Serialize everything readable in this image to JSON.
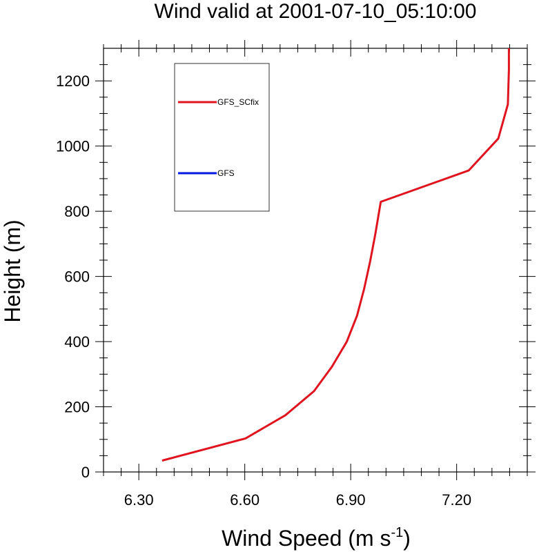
{
  "chart_data": {
    "type": "line",
    "title": "Wind valid at 2001-07-10_05:10:00",
    "xlabel": "Wind Speed (m s",
    "xlabel_superscript": "-1",
    "xlabel_suffix": ")",
    "ylabel": "Height (m)",
    "xlim": [
      6.2,
      7.4
    ],
    "ylim": [
      0,
      1300
    ],
    "x_ticks": [
      "6.30",
      "6.60",
      "6.90",
      "7.20"
    ],
    "x_tick_values": [
      6.3,
      6.6,
      6.9,
      7.2
    ],
    "y_ticks": [
      "0",
      "200",
      "400",
      "600",
      "800",
      "1000",
      "1200"
    ],
    "y_tick_values": [
      0,
      200,
      400,
      600,
      800,
      1000,
      1200
    ],
    "grid": false,
    "legend_position": "top-left",
    "series": [
      {
        "name": "GFS_SCfix",
        "color": "#e0141e",
        "x": [
          6.366,
          6.602,
          6.715,
          6.796,
          6.847,
          6.889,
          6.918,
          6.938,
          6.955,
          6.97,
          6.985,
          7.234,
          7.318,
          7.345,
          7.348,
          7.348
        ],
        "y": [
          35,
          103,
          174,
          248,
          323,
          400,
          480,
          562,
          646,
          732,
          829,
          925,
          1023,
          1128,
          1235,
          1300
        ]
      },
      {
        "name": "GFS",
        "color": "#0019e6",
        "x": [],
        "y": []
      }
    ]
  }
}
